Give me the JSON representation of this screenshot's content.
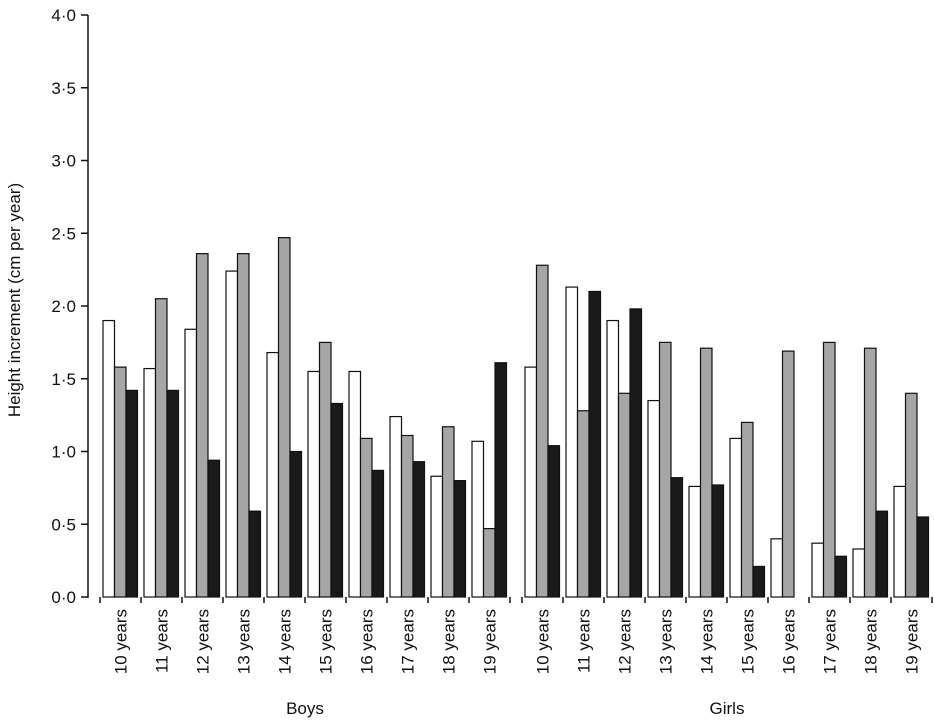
{
  "chart_data": {
    "type": "bar",
    "y_label": "Height increment (cm per year)",
    "groups": [
      {
        "label": "Boys",
        "categories": [
          "10 years",
          "11 years",
          "12 years",
          "13 years",
          "14 years",
          "15 years",
          "16 years",
          "17 years",
          "18 years",
          "19 years"
        ]
      },
      {
        "label": "Girls",
        "categories": [
          "10 years",
          "11 years",
          "12 years",
          "13 years",
          "14 years",
          "15 years",
          "16 years",
          "17 years",
          "18 years",
          "19 years"
        ]
      }
    ],
    "series": [
      {
        "color": "#ffffff",
        "values": [
          1.9,
          1.57,
          1.84,
          2.24,
          1.68,
          1.55,
          1.55,
          1.24,
          0.83,
          1.07,
          1.58,
          2.13,
          1.9,
          1.35,
          0.76,
          1.09,
          0.4,
          0.37,
          0.33,
          0.76
        ]
      },
      {
        "color": "#a6a6a6",
        "values": [
          1.58,
          2.05,
          2.36,
          2.36,
          2.47,
          1.75,
          1.09,
          1.11,
          1.17,
          0.47,
          2.28,
          1.28,
          1.4,
          1.75,
          1.71,
          1.2,
          1.69,
          1.75,
          1.71,
          1.4
        ]
      },
      {
        "color": "#1a1a1a",
        "values": [
          1.42,
          1.42,
          0.94,
          0.59,
          1.0,
          1.33,
          0.87,
          0.93,
          0.8,
          1.61,
          1.04,
          2.1,
          1.98,
          0.82,
          0.77,
          0.21,
          0,
          0.28,
          0.59,
          0.55
        ]
      }
    ],
    "ylim": [
      0,
      4
    ],
    "yticks": [
      {
        "value": 0,
        "label": "0·0"
      },
      {
        "value": 0.5,
        "label": "0·5"
      },
      {
        "value": 1,
        "label": "1·0"
      },
      {
        "value": 1.5,
        "label": "1·5"
      },
      {
        "value": 2,
        "label": "2·0"
      },
      {
        "value": 2.5,
        "label": "2·5"
      },
      {
        "value": 3,
        "label": "3·0"
      },
      {
        "value": 3.5,
        "label": "3·5"
      },
      {
        "value": 4,
        "label": "4·0"
      }
    ]
  }
}
